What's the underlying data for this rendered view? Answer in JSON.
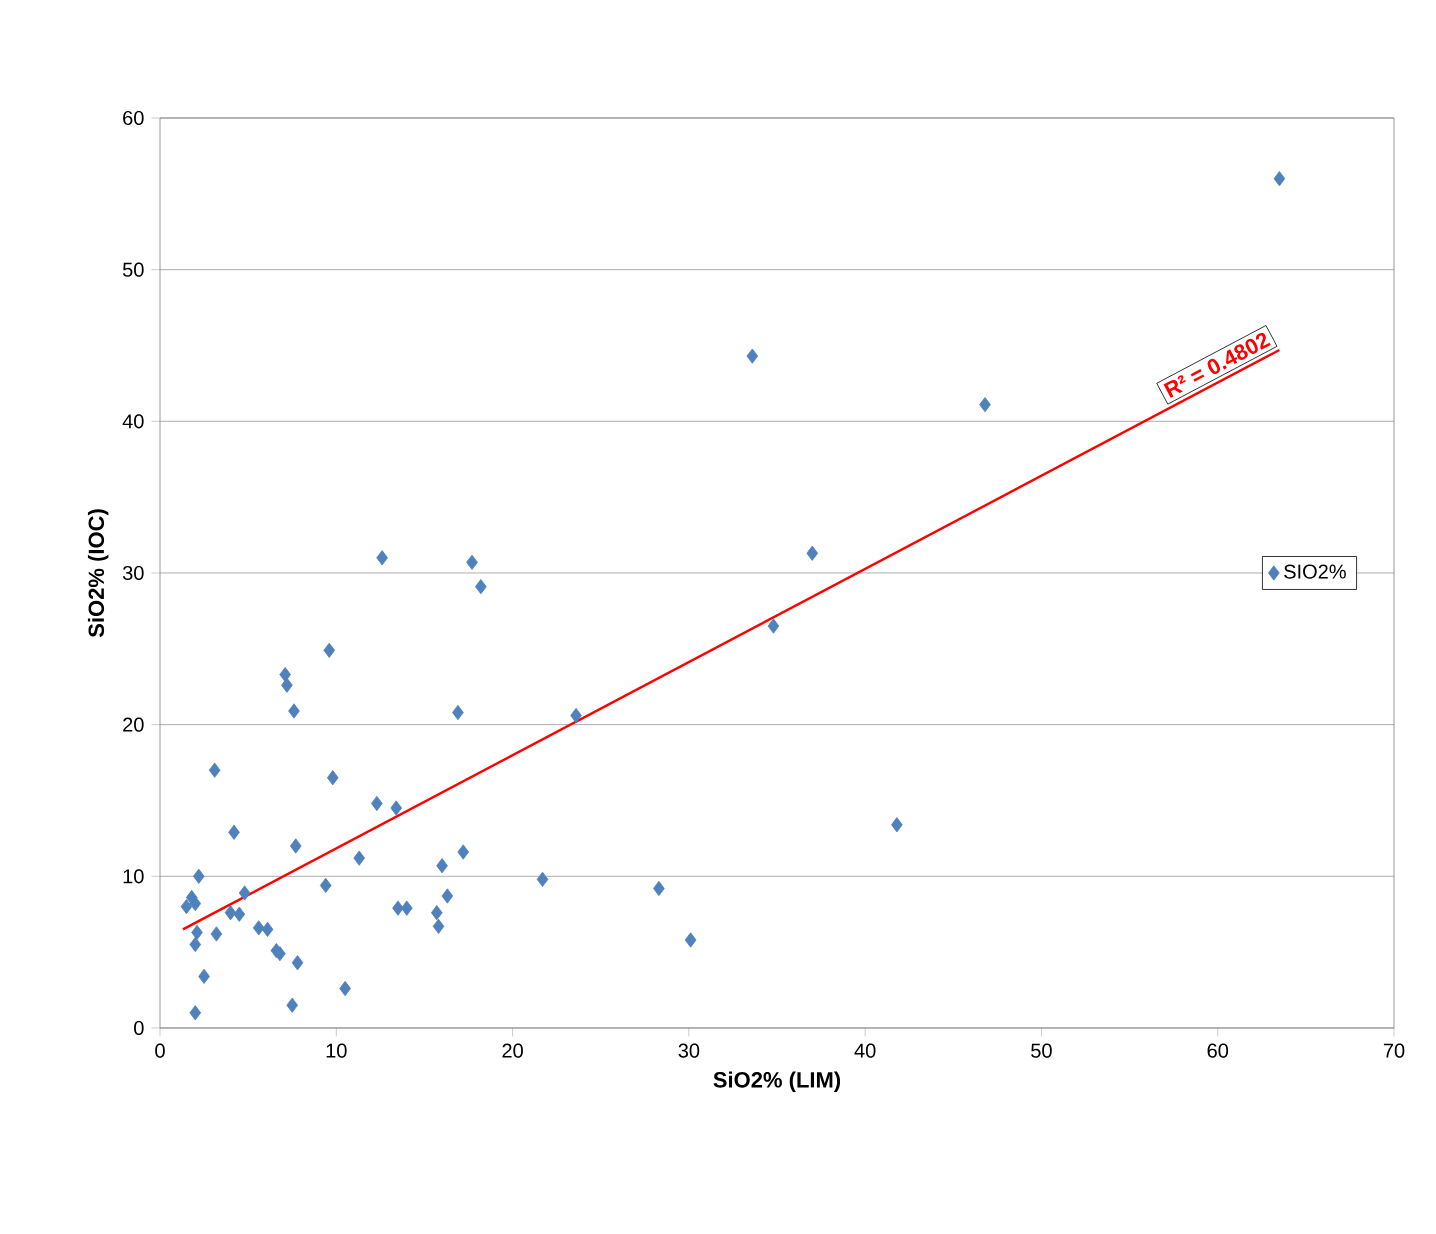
{
  "chart_data": {
    "type": "scatter",
    "xlabel": "SiO2% (LIM)",
    "ylabel": "SiO2% (IOC)",
    "xlim": [
      0,
      70
    ],
    "ylim": [
      0,
      60
    ],
    "xticks": [
      0,
      10,
      20,
      30,
      40,
      50,
      60,
      70
    ],
    "yticks": [
      0,
      10,
      20,
      30,
      40,
      50,
      60
    ],
    "grid": "y",
    "legend": "right",
    "marker": "diamond",
    "series": [
      {
        "name": "SIO2%",
        "color": "#4f81bd",
        "x": [
          1.5,
          1.8,
          2.0,
          2.2,
          2.1,
          2.0,
          2.5,
          2.0,
          3.1,
          3.2,
          4.0,
          4.2,
          4.5,
          4.8,
          5.6,
          6.1,
          6.6,
          6.8,
          7.1,
          7.2,
          7.6,
          7.7,
          7.8,
          7.5,
          9.4,
          9.6,
          9.8,
          10.5,
          11.3,
          12.3,
          12.6,
          13.4,
          13.5,
          14.0,
          15.7,
          15.8,
          16.0,
          16.3,
          16.9,
          17.2,
          17.7,
          18.2,
          21.7,
          23.6,
          28.3,
          30.1,
          33.6,
          34.8,
          37.0,
          41.8,
          46.8,
          63.5
        ],
        "values": [
          8.0,
          8.6,
          8.2,
          10.0,
          6.3,
          5.5,
          3.4,
          1.0,
          17.0,
          6.2,
          7.6,
          12.9,
          7.5,
          8.9,
          6.6,
          6.5,
          5.1,
          4.9,
          23.3,
          22.6,
          20.9,
          12.0,
          4.3,
          1.5,
          9.4,
          24.9,
          16.5,
          2.6,
          11.2,
          14.8,
          31.0,
          14.5,
          7.9,
          7.9,
          7.6,
          6.7,
          10.7,
          8.7,
          20.8,
          11.6,
          30.7,
          29.1,
          9.8,
          20.6,
          9.2,
          5.8,
          44.3,
          26.5,
          31.3,
          13.4,
          41.1,
          56.0
        ]
      },
      {
        "type": "line",
        "marker": "none",
        "color": "#ff0000",
        "x": [
          1.3,
          63.5
        ],
        "values": [
          6.5,
          44.7
        ]
      }
    ],
    "annotations": [
      "R² = 0.4802"
    ]
  }
}
